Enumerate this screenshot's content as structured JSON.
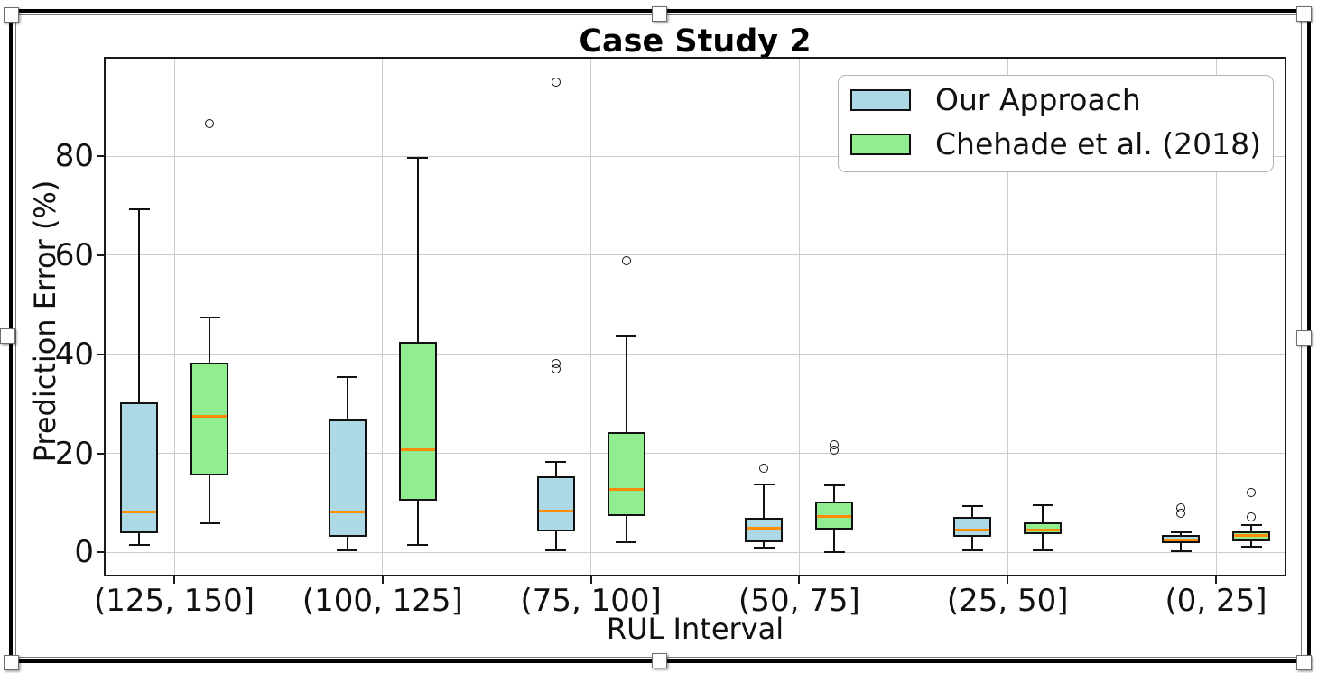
{
  "chart_data": {
    "type": "boxplot",
    "title": "Case Study 2",
    "xlabel": "RUL Interval",
    "ylabel": "Prediction Error (%)",
    "categories": [
      "(125, 150]",
      "(100, 125]",
      "(75, 100]",
      "(50, 75]",
      "(25, 50]",
      "(0, 25]"
    ],
    "yticks": [
      0,
      20,
      40,
      60,
      80
    ],
    "ylim": [
      -4.5,
      99.7
    ],
    "grid": true,
    "legend_position": "upper right",
    "median_color": "#ff8c00",
    "series": [
      {
        "name": "Our Approach",
        "color": "#add8e6",
        "boxes": [
          {
            "whislo": 1.6,
            "q1": 3.9,
            "med": 8.1,
            "q3": 30.3,
            "whishi": 69.2,
            "fliers": []
          },
          {
            "whislo": 0.5,
            "q1": 3.1,
            "med": 8.1,
            "q3": 26.8,
            "whishi": 35.4,
            "fliers": []
          },
          {
            "whislo": 0.4,
            "q1": 4.2,
            "med": 8.4,
            "q3": 15.3,
            "whishi": 18.2,
            "fliers": [
              37.0,
              38.1,
              95.0
            ]
          },
          {
            "whislo": 0.9,
            "q1": 2.0,
            "med": 4.8,
            "q3": 7.0,
            "whishi": 13.8,
            "fliers": [
              17.0
            ]
          },
          {
            "whislo": 0.5,
            "q1": 3.2,
            "med": 4.5,
            "q3": 7.2,
            "whishi": 9.3,
            "fliers": []
          },
          {
            "whislo": 0.2,
            "q1": 1.8,
            "med": 2.6,
            "q3": 3.5,
            "whishi": 4.1,
            "fliers": [
              7.8,
              9.0
            ]
          }
        ]
      },
      {
        "name": "Chehade et al. (2018)",
        "color": "#90ee90",
        "boxes": [
          {
            "whislo": 5.8,
            "q1": 15.6,
            "med": 27.4,
            "q3": 38.3,
            "whishi": 47.4,
            "fliers": [
              86.6
            ]
          },
          {
            "whislo": 1.5,
            "q1": 10.5,
            "med": 20.7,
            "q3": 42.5,
            "whishi": 79.7,
            "fliers": []
          },
          {
            "whislo": 2.1,
            "q1": 7.3,
            "med": 12.7,
            "q3": 24.2,
            "whishi": 43.8,
            "fliers": [
              58.9
            ]
          },
          {
            "whislo": 0.1,
            "q1": 4.6,
            "med": 7.3,
            "q3": 10.2,
            "whishi": 13.5,
            "fliers": [
              20.6,
              21.8
            ]
          },
          {
            "whislo": 0.4,
            "q1": 3.7,
            "med": 4.6,
            "q3": 6.0,
            "whishi": 9.5,
            "fliers": []
          },
          {
            "whislo": 1.2,
            "q1": 2.3,
            "med": 3.5,
            "q3": 4.3,
            "whishi": 5.6,
            "fliers": [
              7.2,
              12.0
            ]
          }
        ]
      }
    ]
  }
}
